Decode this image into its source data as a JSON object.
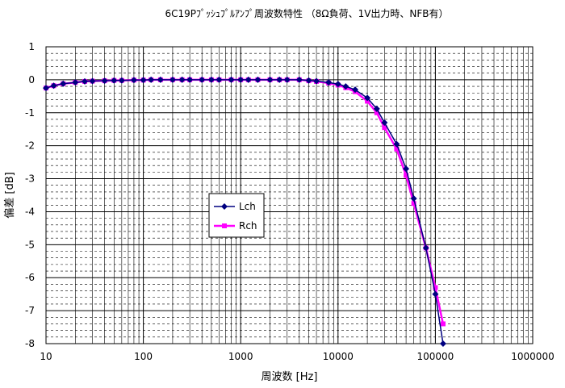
{
  "chart_data": {
    "type": "line",
    "title": "6C19Pﾌﾟｯｼｭﾌﾟﾙｱﾝﾌﾟ周波数特性 （8Ω負荷、1V出力時、NFB有）",
    "xlabel": "周波数 [Hz]",
    "ylabel": "偏差 [dB]",
    "x_scale": "log",
    "xlim": [
      10,
      1000000
    ],
    "ylim": [
      -8,
      1
    ],
    "x_ticks": [
      "10",
      "100",
      "1000",
      "10000",
      "100000",
      "1000000"
    ],
    "y_ticks": [
      "1",
      "0",
      "-1",
      "-2",
      "-3",
      "-4",
      "-5",
      "-6",
      "-7",
      "-8"
    ],
    "grid": true,
    "legend_position": "center-left",
    "series": [
      {
        "name": "Lch",
        "color": "#000080",
        "marker": "diamond",
        "points": [
          [
            10,
            -0.25
          ],
          [
            12,
            -0.18
          ],
          [
            15,
            -0.12
          ],
          [
            20,
            -0.08
          ],
          [
            25,
            -0.05
          ],
          [
            30,
            -0.04
          ],
          [
            40,
            -0.03
          ],
          [
            50,
            -0.02
          ],
          [
            60,
            -0.02
          ],
          [
            80,
            -0.01
          ],
          [
            100,
            -0.01
          ],
          [
            120,
            0
          ],
          [
            150,
            0
          ],
          [
            200,
            0
          ],
          [
            250,
            0
          ],
          [
            300,
            0
          ],
          [
            400,
            0
          ],
          [
            500,
            0
          ],
          [
            600,
            0
          ],
          [
            800,
            0
          ],
          [
            1000,
            0
          ],
          [
            1200,
            0
          ],
          [
            1500,
            0
          ],
          [
            2000,
            0
          ],
          [
            2500,
            0
          ],
          [
            3000,
            0
          ],
          [
            4000,
            0
          ],
          [
            5000,
            -0.02
          ],
          [
            6000,
            -0.04
          ],
          [
            8000,
            -0.08
          ],
          [
            10000,
            -0.13
          ],
          [
            12000,
            -0.2
          ],
          [
            15000,
            -0.3
          ],
          [
            20000,
            -0.55
          ],
          [
            25000,
            -0.88
          ],
          [
            30000,
            -1.3
          ],
          [
            40000,
            -1.95
          ],
          [
            50000,
            -2.7
          ],
          [
            60000,
            -3.6
          ],
          [
            80000,
            -5.1
          ],
          [
            100000,
            -6.5
          ],
          [
            120000,
            -8.0
          ]
        ]
      },
      {
        "name": "Rch",
        "color": "#ff00ff",
        "marker": "square",
        "points": [
          [
            10,
            -0.25
          ],
          [
            12,
            -0.18
          ],
          [
            15,
            -0.12
          ],
          [
            20,
            -0.08
          ],
          [
            25,
            -0.05
          ],
          [
            30,
            -0.04
          ],
          [
            40,
            -0.03
          ],
          [
            50,
            -0.02
          ],
          [
            60,
            -0.02
          ],
          [
            80,
            -0.01
          ],
          [
            100,
            -0.01
          ],
          [
            120,
            0
          ],
          [
            150,
            0
          ],
          [
            200,
            0
          ],
          [
            250,
            0
          ],
          [
            300,
            0
          ],
          [
            400,
            0
          ],
          [
            500,
            0
          ],
          [
            600,
            0
          ],
          [
            800,
            0
          ],
          [
            1000,
            0
          ],
          [
            1200,
            0
          ],
          [
            1500,
            0
          ],
          [
            2000,
            0
          ],
          [
            2500,
            0
          ],
          [
            3000,
            0
          ],
          [
            4000,
            0
          ],
          [
            5000,
            -0.03
          ],
          [
            6000,
            -0.05
          ],
          [
            8000,
            -0.1
          ],
          [
            10000,
            -0.16
          ],
          [
            12000,
            -0.24
          ],
          [
            15000,
            -0.36
          ],
          [
            20000,
            -0.65
          ],
          [
            25000,
            -1.0
          ],
          [
            30000,
            -1.45
          ],
          [
            40000,
            -2.1
          ],
          [
            50000,
            -2.9
          ],
          [
            60000,
            -3.75
          ],
          [
            80000,
            -5.1
          ],
          [
            100000,
            -6.3
          ],
          [
            120000,
            -7.4
          ]
        ]
      }
    ]
  }
}
